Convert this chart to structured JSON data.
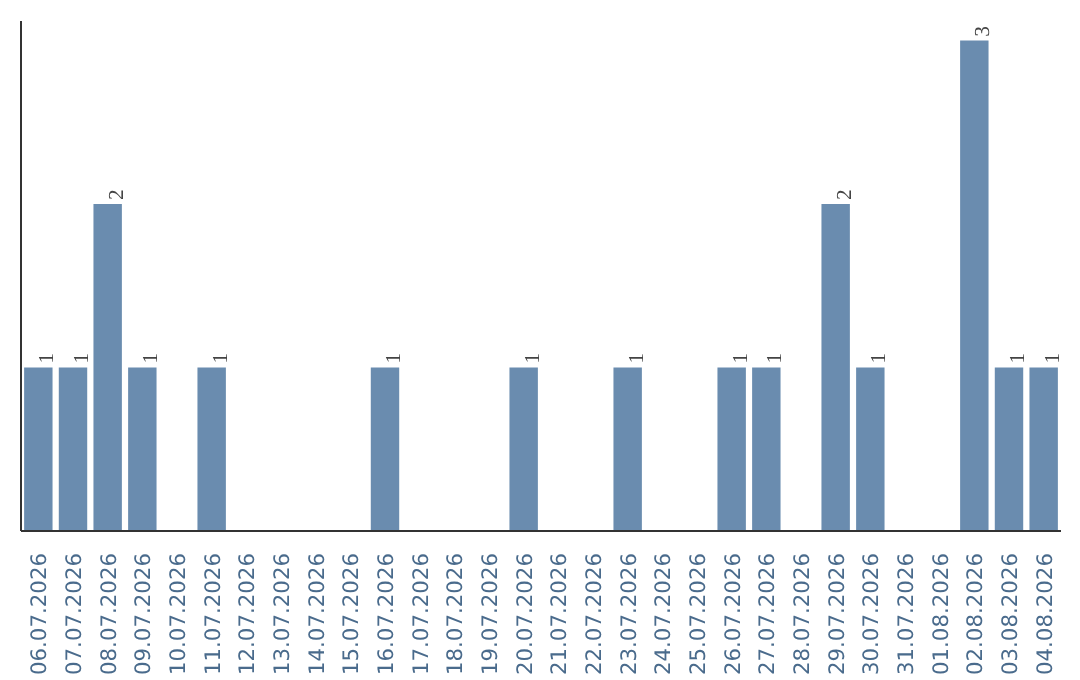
{
  "chart_data": {
    "type": "bar",
    "categories": [
      "06.07.2026",
      "07.07.2026",
      "08.07.2026",
      "09.07.2026",
      "10.07.2026",
      "11.07.2026",
      "12.07.2026",
      "13.07.2026",
      "14.07.2026",
      "15.07.2026",
      "16.07.2026",
      "17.07.2026",
      "18.07.2026",
      "19.07.2026",
      "20.07.2026",
      "21.07.2026",
      "22.07.2026",
      "23.07.2026",
      "24.07.2026",
      "25.07.2026",
      "26.07.2026",
      "27.07.2026",
      "28.07.2026",
      "29.07.2026",
      "30.07.2026",
      "31.07.2026",
      "01.08.2026",
      "02.08.2026",
      "03.08.2026",
      "04.08.2026"
    ],
    "values": [
      1,
      1,
      2,
      1,
      0,
      1,
      0,
      0,
      0,
      0,
      1,
      0,
      0,
      0,
      1,
      0,
      0,
      1,
      0,
      0,
      1,
      1,
      0,
      2,
      1,
      0,
      0,
      3,
      1,
      1
    ],
    "value_labels": [
      "1",
      "1",
      "2",
      "1",
      null,
      "1",
      null,
      null,
      null,
      null,
      "1",
      null,
      null,
      null,
      "1",
      null,
      null,
      "1",
      null,
      null,
      "1",
      "1",
      null,
      "2",
      "1",
      null,
      null,
      "3",
      "1",
      "1"
    ],
    "color": "#6a8caf",
    "tick_labels": "x",
    "grid": false
  }
}
